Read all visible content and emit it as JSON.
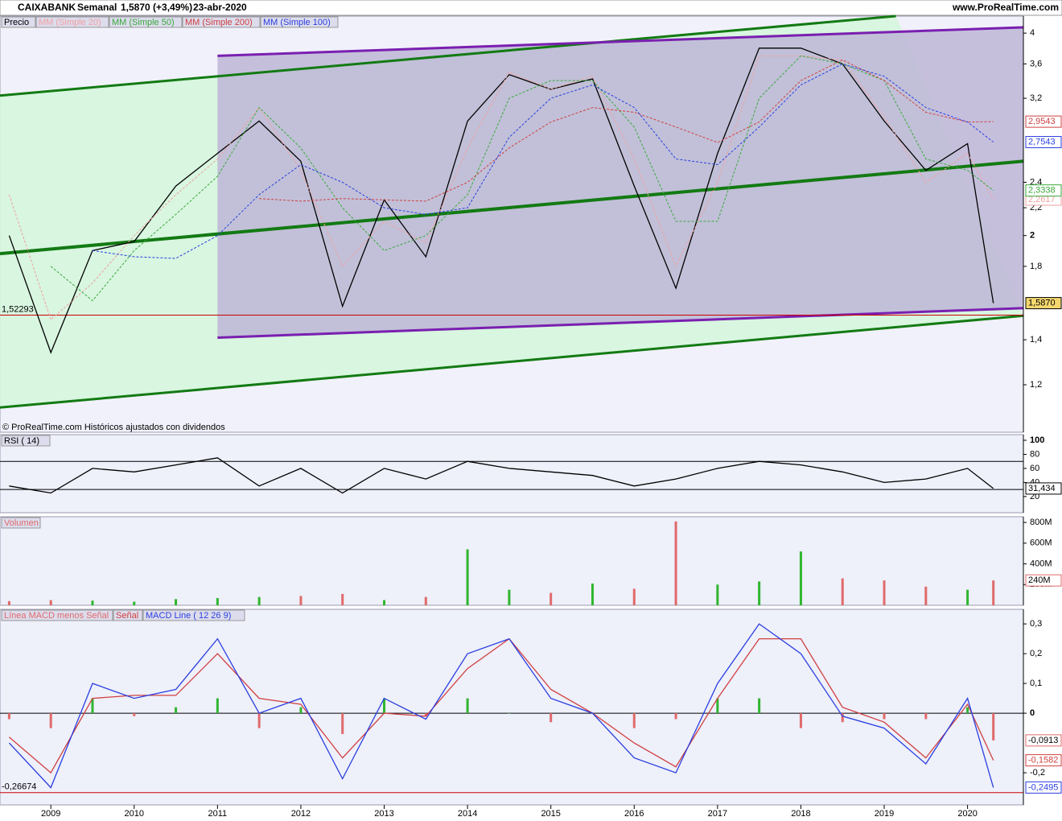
{
  "header": {
    "symbol": "CAIXABANK",
    "period": "Semanal",
    "last": "1,5870 (+3,49%)",
    "date": "23-abr-2020",
    "site": "www.ProRealTime.com"
  },
  "chart_data": [
    {
      "type": "line",
      "log_scale": true,
      "note": "© ProRealTime.com  Históricos ajustados con dividendos",
      "x": [
        2008.5,
        2009,
        2009.5,
        2010,
        2010.5,
        2011,
        2011.5,
        2012,
        2012.5,
        2013,
        2013.5,
        2014,
        2014.5,
        2015,
        2015.5,
        2016,
        2016.5,
        2017,
        2017.5,
        2018,
        2018.5,
        2019,
        2019.5,
        2020,
        2020.31
      ],
      "xlim": [
        2008.39,
        2020.67
      ],
      "ylim": [
        1.02,
        4.24
      ],
      "yticks": [
        {
          "value": 1.2,
          "label": "1,2"
        },
        {
          "value": 1.4,
          "label": "1,4"
        },
        {
          "value": 1.8,
          "label": "1,8"
        },
        2,
        {
          "value": 2.2,
          "label": "2,2"
        },
        {
          "value": 2.4,
          "label": "2,4"
        },
        {
          "value": 3.2,
          "label": "3,2"
        },
        {
          "value": 3.6,
          "label": "3,6"
        },
        4
      ],
      "series": [
        {
          "name": "Precio",
          "color": "#000000",
          "values": [
            2.0,
            1.34,
            1.9,
            1.96,
            2.37,
            2.65,
            2.96,
            2.58,
            1.57,
            2.26,
            1.86,
            2.96,
            3.47,
            3.3,
            3.42,
            2.37,
            1.67,
            2.65,
            3.8,
            3.8,
            3.6,
            2.96,
            2.5,
            2.74,
            1.587
          ],
          "last_value_label": "1,5870"
        },
        {
          "name": "MM (Simple 20)",
          "color": "#f2a0a0",
          "dash": true,
          "values": [
            2.3,
            1.5,
            1.7,
            2.0,
            2.3,
            2.6,
            3.1,
            2.5,
            1.8,
            2.1,
            1.95,
            2.7,
            3.5,
            3.3,
            3.45,
            2.6,
            1.8,
            2.4,
            3.7,
            3.7,
            3.65,
            3.0,
            2.4,
            2.65,
            2.2617
          ],
          "last_value_label": "2,2617"
        },
        {
          "name": "MM (Simple 50)",
          "color": "#3aa83a",
          "dash": true,
          "values": [
            null,
            1.8,
            1.6,
            1.9,
            2.15,
            2.45,
            3.1,
            2.7,
            2.2,
            1.9,
            2.0,
            2.3,
            3.2,
            3.4,
            3.4,
            2.9,
            2.1,
            2.1,
            3.2,
            3.7,
            3.6,
            3.4,
            2.6,
            2.5,
            2.3338
          ],
          "last_value_label": "2,3338"
        },
        {
          "name": "MM (Simple 200)",
          "color": "#d04040",
          "dash": true,
          "values": [
            null,
            null,
            null,
            null,
            null,
            null,
            2.27,
            2.25,
            2.27,
            2.26,
            2.25,
            2.4,
            2.7,
            2.95,
            3.1,
            3.05,
            2.9,
            2.75,
            2.95,
            3.4,
            3.65,
            3.4,
            3.05,
            2.95,
            2.9543
          ],
          "last_value_label": "2,9543"
        },
        {
          "name": "MM (Simple 100)",
          "color": "#2a3ee0",
          "dash": true,
          "values": [
            null,
            null,
            1.9,
            1.86,
            1.85,
            2.0,
            2.3,
            2.55,
            2.4,
            2.2,
            2.15,
            2.2,
            2.8,
            3.2,
            3.35,
            3.1,
            2.6,
            2.55,
            2.9,
            3.35,
            3.6,
            3.45,
            3.1,
            2.95,
            2.7543
          ],
          "last_value_label": "2,7543"
        }
      ],
      "channels": [
        {
          "color": "#137a13",
          "fill": "#d3f7da",
          "upper": {
            "x": [
              2008.39,
              2019.14
            ],
            "y": [
              3.23,
              4.24
            ]
          },
          "lower": {
            "x": [
              2008.39,
              2020.67
            ],
            "y": [
              1.11,
              1.52
            ]
          }
        },
        {
          "color": "#7a1fb0",
          "fill": "#bdb6d6",
          "upper": {
            "x": [
              2011.0,
              2020.67
            ],
            "y": [
              3.7,
              4.08
            ]
          },
          "lower": {
            "x": [
              2011.0,
              2020.67
            ],
            "y": [
              1.41,
              1.56
            ]
          }
        }
      ],
      "trendlines": [
        {
          "color": "#137a13",
          "x": [
            2008.39,
            2020.67
          ],
          "y": [
            1.88,
            2.58
          ]
        }
      ],
      "hline": {
        "value": 1.52293,
        "label": "1,52293",
        "color": "#cc0000"
      }
    },
    {
      "type": "line",
      "xlim": [
        2008.39,
        2020.67
      ],
      "ylim": [
        -3,
        108
      ],
      "yticks": [
        20,
        40,
        60,
        80,
        100
      ],
      "levels": [
        30,
        70
      ],
      "x": [
        2008.5,
        2009,
        2009.5,
        2010,
        2010.5,
        2011,
        2011.5,
        2012,
        2012.5,
        2013,
        2013.5,
        2014,
        2014.5,
        2015,
        2015.5,
        2016,
        2016.5,
        2017,
        2017.5,
        2018,
        2018.5,
        2019,
        2019.5,
        2020,
        2020.31
      ],
      "series": [
        {
          "name": "RSI ( 14)",
          "color": "#000000",
          "values": [
            35,
            25,
            60,
            55,
            65,
            75,
            35,
            60,
            25,
            60,
            45,
            70,
            60,
            55,
            50,
            35,
            45,
            60,
            70,
            65,
            55,
            40,
            45,
            60,
            31.434
          ],
          "last_value_label": "31,434"
        }
      ]
    },
    {
      "type": "bar",
      "xlim": [
        2008.39,
        2020.67
      ],
      "ylim": [
        0,
        855000000
      ],
      "yticks": [
        {
          "value": 200000000,
          "label": "200M"
        },
        {
          "value": 400000000,
          "label": "400M"
        },
        {
          "value": 600000000,
          "label": "600M"
        },
        {
          "value": 800000000,
          "label": "800M"
        }
      ],
      "x": [
        2008.5,
        2009,
        2009.5,
        2010,
        2010.5,
        2011,
        2011.5,
        2012,
        2012.5,
        2013,
        2013.5,
        2014,
        2014.5,
        2015,
        2015.5,
        2016,
        2016.5,
        2017,
        2017.5,
        2018,
        2018.5,
        2019,
        2019.5,
        2020,
        2020.31
      ],
      "series": [
        {
          "name": "Volumen",
          "color": "#e06a6a",
          "up_color": "#2fb62f",
          "values": [
            40000000,
            50000000,
            45000000,
            35000000,
            60000000,
            70000000,
            80000000,
            90000000,
            110000000,
            50000000,
            80000000,
            540000000,
            150000000,
            120000000,
            210000000,
            160000000,
            810000000,
            200000000,
            230000000,
            520000000,
            260000000,
            240000000,
            180000000,
            150000000,
            240000000
          ],
          "last_value_label": "240M"
        }
      ]
    },
    {
      "type": "line",
      "xlim": [
        2008.39,
        2020.67
      ],
      "ylim": [
        -0.308,
        0.349
      ],
      "yticks": [
        {
          "value": -0.2,
          "label": "-0,2"
        },
        0,
        {
          "value": 0.1,
          "label": "0,1"
        },
        {
          "value": 0.2,
          "label": "0,2"
        },
        {
          "value": 0.3,
          "label": "0,3"
        }
      ],
      "xticks": [
        2009,
        2010,
        2011,
        2012,
        2013,
        2014,
        2015,
        2016,
        2017,
        2018,
        2019,
        2020
      ],
      "x": [
        2008.5,
        2009,
        2009.5,
        2010,
        2010.5,
        2011,
        2011.5,
        2012,
        2012.5,
        2013,
        2013.5,
        2014,
        2014.5,
        2015,
        2015.5,
        2016,
        2016.5,
        2017,
        2017.5,
        2018,
        2018.5,
        2019,
        2019.5,
        2020,
        2020.31
      ],
      "series": [
        {
          "name": "Línea MACD menos Señal",
          "color": "#e06a6a",
          "up_color": "#2fb62f",
          "kind": "bar",
          "values": [
            -0.02,
            -0.05,
            0.05,
            -0.01,
            0.02,
            0.05,
            -0.05,
            0.02,
            -0.07,
            0.05,
            -0.01,
            0.05,
            0,
            -0.03,
            0,
            -0.05,
            -0.02,
            0.05,
            0.05,
            -0.05,
            -0.03,
            -0.02,
            -0.02,
            0.02,
            -0.0913
          ],
          "last_value_label": "-0,0913"
        },
        {
          "name": "Señal",
          "color": "#d04040",
          "values": [
            -0.08,
            -0.2,
            0.05,
            0.06,
            0.06,
            0.2,
            0.05,
            0.03,
            -0.15,
            0.0,
            -0.01,
            0.15,
            0.25,
            0.08,
            0.0,
            -0.1,
            -0.18,
            0.05,
            0.25,
            0.25,
            0.02,
            -0.03,
            -0.15,
            0.03,
            -0.1582
          ],
          "last_value_label": "-0,1582"
        },
        {
          "name": "MACD Line ( 12 26 9)",
          "color": "#2a3ee0",
          "values": [
            -0.1,
            -0.25,
            0.1,
            0.05,
            0.08,
            0.25,
            0.0,
            0.05,
            -0.22,
            0.05,
            -0.02,
            0.2,
            0.25,
            0.05,
            0.0,
            -0.15,
            -0.2,
            0.1,
            0.3,
            0.2,
            -0.01,
            -0.05,
            -0.17,
            0.05,
            -0.2495
          ],
          "last_value_label": "-0,2495"
        }
      ],
      "zero_line": 0,
      "hline": {
        "value": -0.26674,
        "label": "-0,26674",
        "color": "#cc0000"
      }
    }
  ]
}
